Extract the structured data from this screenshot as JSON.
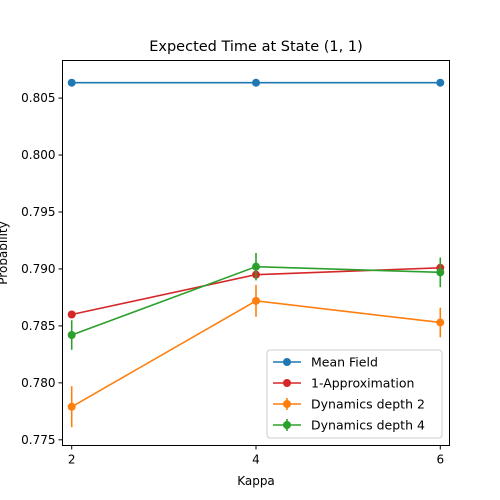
{
  "chart_data": {
    "type": "line",
    "title": "Expected Time at State (1, 1)",
    "xlabel": "Kappa",
    "ylabel": "Probability",
    "x": [
      2,
      4,
      6
    ],
    "x_ticks": [
      "2",
      "4",
      "6"
    ],
    "y_ticks": [
      "0.775",
      "0.780",
      "0.785",
      "0.790",
      "0.795",
      "0.800",
      "0.805"
    ],
    "xlim": [
      1.9,
      6.1
    ],
    "ylim": [
      0.7745,
      0.8083
    ],
    "grid": false,
    "legend_position": "lower right",
    "series": [
      {
        "name": "Mean Field",
        "color": "#1f77b4",
        "values": [
          0.80635,
          0.80635,
          0.80635
        ]
      },
      {
        "name": "1-Approximation",
        "color": "#d62728",
        "values": [
          0.786,
          0.7895,
          0.7901
        ]
      },
      {
        "name": "Dynamics depth 2",
        "color": "#ff7f0e",
        "values": [
          0.7779,
          0.7872,
          0.7853
        ],
        "errors": [
          0.0018,
          0.0014,
          0.0013
        ]
      },
      {
        "name": "Dynamics depth 4",
        "color": "#2ca02c",
        "values": [
          0.7842,
          0.7902,
          0.7897
        ],
        "errors": [
          0.0013,
          0.0012,
          0.0013
        ]
      }
    ]
  }
}
